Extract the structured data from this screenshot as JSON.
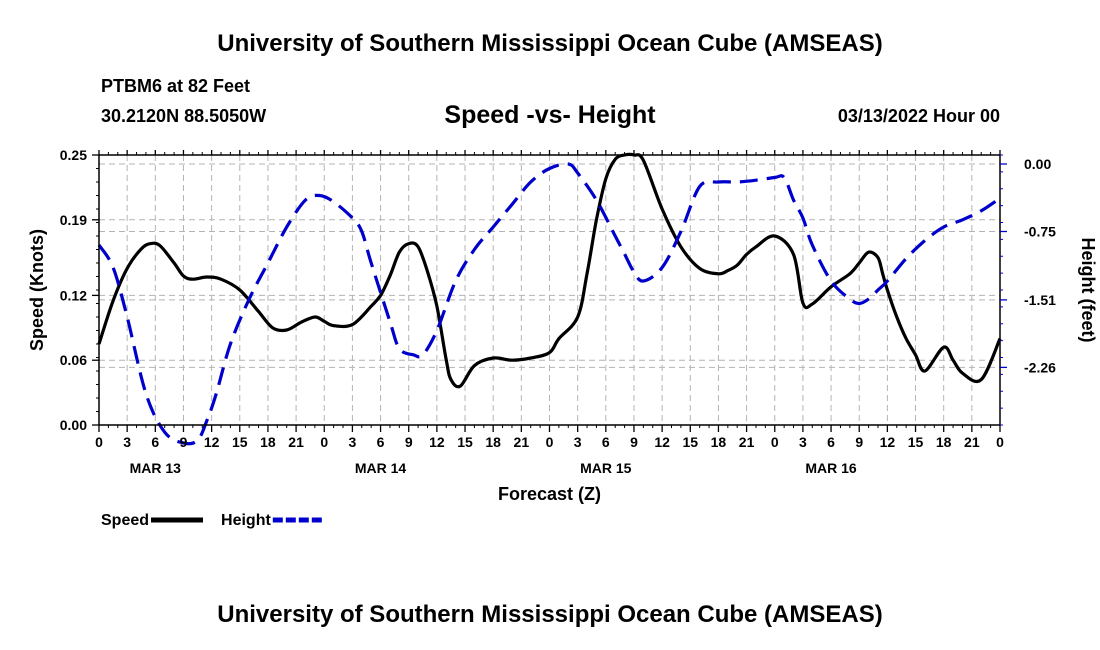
{
  "page": {
    "title_top": "University of Southern Mississippi Ocean Cube (AMSEAS)",
    "title_bottom": "University of Southern Mississippi Ocean Cube (AMSEAS)",
    "station": "PTBM6 at 82 Feet",
    "coords": "30.2120N  88.5050W",
    "datetime": "03/13/2022 Hour 00"
  },
  "chart_data": {
    "type": "line",
    "title": "Speed -vs- Height",
    "xlabel": "Forecast (Z)",
    "ylabel": "Speed (Knots)",
    "y2label": "Height (feet)",
    "x_range_hours": [
      0,
      96
    ],
    "x_tick_step_hours": 3,
    "x_tick_labels": [
      "0",
      "3",
      "6",
      "9",
      "12",
      "15",
      "18",
      "21",
      "0",
      "3",
      "6",
      "9",
      "12",
      "15",
      "18",
      "21",
      "0",
      "3",
      "6",
      "9",
      "12",
      "15",
      "18",
      "21",
      "0",
      "3",
      "6",
      "9",
      "12",
      "15",
      "18",
      "21",
      "0"
    ],
    "date_labels": [
      {
        "hour": 6,
        "label": "MAR 13"
      },
      {
        "hour": 30,
        "label": "MAR 14"
      },
      {
        "hour": 54,
        "label": "MAR 15"
      },
      {
        "hour": 78,
        "label": "MAR 16"
      }
    ],
    "y_left": {
      "min": 0,
      "max": 0.25,
      "ticks": [
        0.0,
        0.06,
        0.12,
        0.19,
        0.25
      ],
      "tick_labels": [
        "0.00",
        "0.06",
        "0.12",
        "0.19",
        "0.25"
      ]
    },
    "y_right": {
      "min": -2.9,
      "max": 0.1,
      "ticks": [
        0.0,
        -0.75,
        -1.51,
        -2.26
      ],
      "tick_labels": [
        "0.00",
        "-0.75",
        "-1.51",
        "-2.26"
      ]
    },
    "series": [
      {
        "name": "Speed",
        "axis": "left",
        "color": "#000000",
        "dash": "solid",
        "x": [
          0,
          1.5,
          3,
          4.5,
          5.5,
          6.5,
          8,
          9,
          10,
          11.5,
          13,
          15,
          17,
          18.5,
          20,
          21.5,
          23,
          24,
          25,
          27,
          29,
          30,
          31,
          32,
          33,
          34,
          35,
          36,
          37,
          37.5,
          38.5,
          40,
          42,
          44,
          46,
          48,
          49,
          51,
          52,
          53,
          54,
          55,
          56,
          57,
          58,
          60,
          62,
          64,
          66,
          67,
          68,
          69,
          70,
          72,
          74,
          75,
          76,
          78,
          80,
          81,
          82,
          83,
          83.5,
          84,
          85,
          86,
          87,
          88,
          90,
          91,
          92,
          94,
          96
        ],
        "y": [
          0.075,
          0.115,
          0.145,
          0.163,
          0.168,
          0.166,
          0.15,
          0.138,
          0.135,
          0.137,
          0.135,
          0.125,
          0.105,
          0.09,
          0.088,
          0.095,
          0.1,
          0.096,
          0.092,
          0.093,
          0.11,
          0.12,
          0.138,
          0.16,
          0.168,
          0.165,
          0.142,
          0.11,
          0.06,
          0.042,
          0.036,
          0.055,
          0.062,
          0.06,
          0.062,
          0.067,
          0.08,
          0.1,
          0.14,
          0.19,
          0.228,
          0.246,
          0.25,
          0.25,
          0.245,
          0.2,
          0.165,
          0.145,
          0.14,
          0.143,
          0.148,
          0.158,
          0.165,
          0.175,
          0.158,
          0.113,
          0.112,
          0.128,
          0.14,
          0.15,
          0.16,
          0.155,
          0.14,
          0.125,
          0.1,
          0.08,
          0.065,
          0.05,
          0.072,
          0.06,
          0.048,
          0.042,
          0.08
        ]
      },
      {
        "name": "Height",
        "axis": "right",
        "color": "#0000cc",
        "dash": "dashed",
        "x": [
          0,
          1.5,
          3,
          5,
          7,
          9,
          10.5,
          11.5,
          12.5,
          14,
          16,
          18,
          20,
          22,
          23.5,
          25,
          27,
          28,
          29,
          31,
          32,
          33.5,
          34.5,
          36,
          38,
          40,
          42,
          44,
          46,
          48,
          50,
          51,
          53,
          55,
          56,
          57,
          58,
          60,
          62,
          64,
          66,
          68,
          70,
          72,
          73,
          74,
          75,
          76,
          78,
          80,
          81,
          82,
          83,
          84,
          86,
          88,
          90,
          92,
          94,
          96
        ],
        "y": [
          -0.9,
          -1.15,
          -1.7,
          -2.55,
          -2.98,
          -3.1,
          -3.07,
          -2.85,
          -2.55,
          -2.0,
          -1.5,
          -1.1,
          -0.7,
          -0.4,
          -0.35,
          -0.42,
          -0.6,
          -0.75,
          -1.1,
          -1.75,
          -2.05,
          -2.12,
          -2.12,
          -1.85,
          -1.3,
          -0.95,
          -0.7,
          -0.45,
          -0.2,
          -0.05,
          0.0,
          -0.1,
          -0.4,
          -0.8,
          -1.0,
          -1.2,
          -1.3,
          -1.15,
          -0.75,
          -0.25,
          -0.2,
          -0.2,
          -0.18,
          -0.15,
          -0.15,
          -0.4,
          -0.6,
          -0.9,
          -1.3,
          -1.5,
          -1.55,
          -1.5,
          -1.4,
          -1.3,
          -1.05,
          -0.85,
          -0.7,
          -0.62,
          -0.52,
          -0.38
        ]
      }
    ]
  }
}
